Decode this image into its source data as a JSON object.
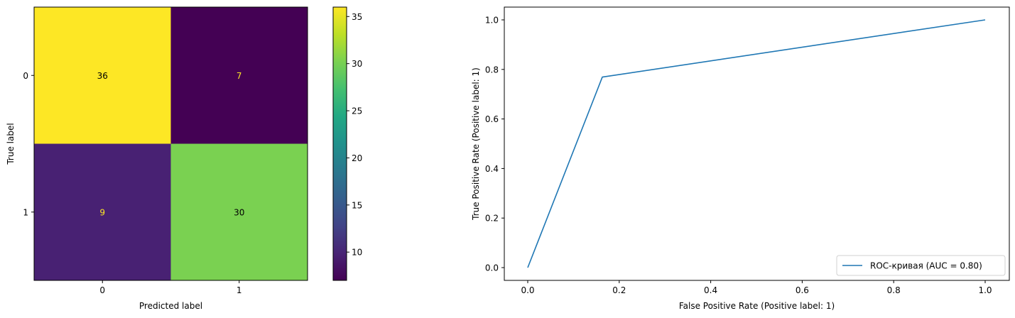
{
  "chart_data": [
    {
      "type": "heatmap",
      "title": "",
      "xlabel": "Predicted label",
      "ylabel": "True label",
      "x_categories": [
        "0",
        "1"
      ],
      "y_categories": [
        "0",
        "1"
      ],
      "values": [
        [
          36,
          7
        ],
        [
          9,
          30
        ]
      ],
      "colormap": "viridis",
      "vmin": 7,
      "vmax": 36,
      "colorbar_ticks": [
        "10",
        "15",
        "20",
        "25",
        "30",
        "35"
      ],
      "cell_colors": [
        [
          "#fde725",
          "#440154"
        ],
        [
          "#482173",
          "#7ad151"
        ]
      ],
      "annotation_colors": [
        [
          "#000000",
          "#fde725"
        ],
        [
          "#fde725",
          "#000000"
        ]
      ],
      "grid": false
    },
    {
      "type": "line",
      "title": "",
      "xlabel": "False Positive Rate (Positive label: 1)",
      "ylabel": "True Positive Rate (Positive label: 1)",
      "xlim": [
        0,
        1
      ],
      "ylim": [
        0,
        1
      ],
      "x_ticks": [
        "0.0",
        "0.2",
        "0.4",
        "0.6",
        "0.8",
        "1.0"
      ],
      "y_ticks": [
        "0.0",
        "0.2",
        "0.4",
        "0.6",
        "0.8",
        "1.0"
      ],
      "series": [
        {
          "name": "ROC-кривая (AUC = 0.80)",
          "color": "#1f77b4",
          "x": [
            0.0,
            0.163,
            1.0
          ],
          "y": [
            0.0,
            0.769,
            1.0
          ]
        }
      ],
      "legend_position": "lower-right",
      "grid": false
    }
  ]
}
